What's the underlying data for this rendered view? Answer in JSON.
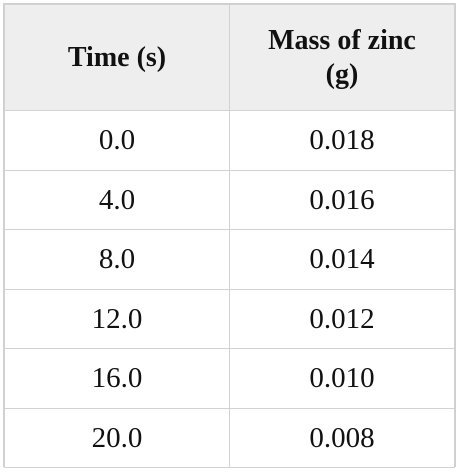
{
  "table": {
    "headers": [
      "Time (s)",
      "Mass of zinc\n(g)"
    ],
    "rows": [
      [
        "0.0",
        "0.018"
      ],
      [
        "4.0",
        "0.016"
      ],
      [
        "8.0",
        "0.014"
      ],
      [
        "12.0",
        "0.012"
      ],
      [
        "16.0",
        "0.010"
      ],
      [
        "20.0",
        "0.008"
      ]
    ]
  }
}
